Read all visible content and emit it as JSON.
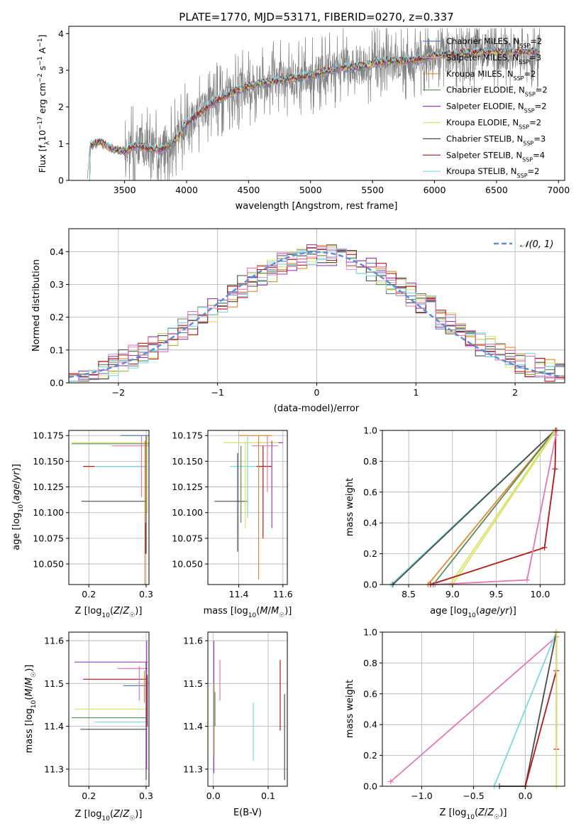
{
  "colors": {
    "chabrier_miles": "#5b7fb5",
    "salpeter_miles": "#d0a6cf",
    "kroupa_miles": "#e08b2e",
    "chabrier_elodie": "#5a8a5a",
    "salpeter_elodie": "#9a3fb7",
    "kroupa_elodie": "#d9e36a",
    "chabrier_stelib": "#4a4a4a",
    "salpeter_stelib": "#b01818",
    "kroupa_stelib": "#7fd8e0",
    "pink": "#e377b2",
    "normal": "#5b8ed6",
    "data": "#808080"
  },
  "chart_data": [
    {
      "id": "spectrum",
      "type": "line",
      "title": "PLATE=1770, MJD=53171, FIBERID=0270, z=0.337",
      "xlabel": "wavelength [Angstrom, rest frame]",
      "ylabel": "Flux [f_λ 10^-17 erg cm^-2 s^-1 A^-1]",
      "xlim": [
        3050,
        7050
      ],
      "ylim": [
        0,
        4.2
      ],
      "xticks": [
        "3500",
        "4000",
        "4500",
        "5000",
        "5500",
        "6000",
        "6500",
        "7000"
      ],
      "yticks": [
        "0",
        "1",
        "2",
        "3",
        "4"
      ],
      "grid": false,
      "legend_position": "top-right",
      "series": [
        {
          "name": "Chabrier MILES, N_SSP=2",
          "color": "chabrier_miles"
        },
        {
          "name": "Salpeter MILES, N_SSP=3",
          "color": "salpeter_miles"
        },
        {
          "name": "Kroupa MILES, N_SSP=2",
          "color": "kroupa_miles"
        },
        {
          "name": "Chabrier ELODIE, N_SSP=2",
          "color": "chabrier_elodie"
        },
        {
          "name": "Salpeter ELODIE, N_SSP=2",
          "color": "salpeter_elodie"
        },
        {
          "name": "Kroupa ELODIE, N_SSP=2",
          "color": "kroupa_elodie"
        },
        {
          "name": "Chabrier STELIB, N_SSP=3",
          "color": "chabrier_stelib"
        },
        {
          "name": "Salpeter STELIB, N_SSP=4",
          "color": "salpeter_stelib"
        },
        {
          "name": "Kroupa STELIB, N_SSP=2",
          "color": "kroupa_stelib"
        }
      ],
      "continuum": [
        [
          3200,
          0
        ],
        [
          3220,
          0.95
        ],
        [
          3300,
          1.05
        ],
        [
          3400,
          0.85
        ],
        [
          3500,
          0.8
        ],
        [
          3600,
          0.95
        ],
        [
          3700,
          0.85
        ],
        [
          3800,
          0.85
        ],
        [
          3900,
          1.05
        ],
        [
          4000,
          1.55
        ],
        [
          4200,
          2.1
        ],
        [
          4400,
          2.45
        ],
        [
          4600,
          2.65
        ],
        [
          4800,
          2.75
        ],
        [
          5000,
          2.85
        ],
        [
          5200,
          3.05
        ],
        [
          5400,
          3.1
        ],
        [
          5600,
          3.25
        ],
        [
          5800,
          3.25
        ],
        [
          6000,
          3.4
        ],
        [
          6200,
          3.45
        ],
        [
          6400,
          3.5
        ],
        [
          6600,
          3.5
        ],
        [
          6800,
          3.5
        ],
        [
          6850,
          3.5
        ]
      ]
    },
    {
      "id": "residuals",
      "type": "line",
      "xlabel": "(data-model)/error",
      "ylabel": "Normed distribution",
      "xlim": [
        -2.5,
        2.5
      ],
      "ylim": [
        0,
        0.47
      ],
      "xticks": [
        "−2",
        "−1",
        "0",
        "1",
        "2"
      ],
      "yticks": [
        "0.0",
        "0.1",
        "0.2",
        "0.3",
        "0.4"
      ],
      "grid": true,
      "legend": "N(0,1)",
      "legend_position": "top-right"
    },
    {
      "id": "age_vs_Z",
      "type": "scatter",
      "xlabel": "Z [log10(Z/Z☉)]",
      "ylabel": "age [log10(age/yr)]",
      "xlim": [
        0.165,
        0.305
      ],
      "ylim": [
        10.03,
        10.18
      ],
      "xticks": [
        "0.2",
        "0.3"
      ],
      "yticks": [
        "10.050",
        "10.075",
        "10.100",
        "10.125",
        "10.150",
        "10.175"
      ],
      "grid": true
    },
    {
      "id": "age_vs_mass",
      "type": "scatter",
      "xlabel": "mass [log10(M/M☉)]",
      "xlim": [
        11.26,
        11.62
      ],
      "ylim": [
        10.03,
        10.18
      ],
      "xticks": [
        "11.4",
        "11.6"
      ],
      "yticks": [
        "10.175",
        "10.150",
        "10.125",
        "10.100",
        "10.075",
        "10.050"
      ],
      "grid": true
    },
    {
      "id": "massweight_vs_age",
      "type": "line",
      "xlabel": "age [log10(age/yr)]",
      "ylabel": "mass weight",
      "xlim": [
        8.2,
        10.28
      ],
      "ylim": [
        0,
        1
      ],
      "xticks": [
        "8.5",
        "9.0",
        "9.5",
        "10.0"
      ],
      "yticks": [
        "0.0",
        "0.2",
        "0.4",
        "0.6",
        "0.8",
        "1.0"
      ],
      "grid": true,
      "series": [
        {
          "color": "kroupa_stelib",
          "x": [
            8.3,
            10.17
          ],
          "y": [
            0,
            1
          ]
        },
        {
          "color": "chabrier_stelib",
          "x": [
            8.32,
            10.17
          ],
          "y": [
            0,
            1
          ]
        },
        {
          "color": "kroupa_miles",
          "x": [
            8.72,
            10.17
          ],
          "y": [
            0,
            1
          ]
        },
        {
          "color": "chabrier_elodie",
          "x": [
            8.78,
            10.17
          ],
          "y": [
            0,
            1
          ]
        },
        {
          "color": "kroupa_elodie",
          "x": [
            8.97,
            10.17
          ],
          "y": [
            0,
            1
          ]
        },
        {
          "color": "kroupa_elodie",
          "x": [
            9.0,
            10.18
          ],
          "y": [
            0,
            1
          ]
        },
        {
          "color": "salpeter_stelib",
          "x": [
            8.75,
            10.05,
            10.17,
            10.18
          ],
          "y": [
            0,
            0.24,
            0.75,
            1
          ]
        },
        {
          "color": "pink",
          "x": [
            8.8,
            9.85,
            10.18,
            10.19
          ],
          "y": [
            0,
            0.03,
            0.97,
            1
          ]
        }
      ]
    },
    {
      "id": "mass_vs_Z",
      "type": "scatter",
      "xlabel": "Z [log10(Z/Z☉)]",
      "ylabel": "mass [log10(M/M☉)]",
      "xlim": [
        0.165,
        0.305
      ],
      "ylim": [
        11.26,
        11.62
      ],
      "xticks": [
        "0.2",
        "0.3"
      ],
      "yticks": [
        "11.3",
        "11.4",
        "11.5",
        "11.6"
      ],
      "grid": true
    },
    {
      "id": "mass_vs_ebv",
      "type": "scatter",
      "xlabel": "E(B-V)",
      "xlim": [
        -0.01,
        0.135
      ],
      "ylim": [
        11.26,
        11.62
      ],
      "xticks": [
        "0.0",
        "0.1"
      ],
      "yticks": [
        "11.3",
        "11.4",
        "11.5",
        "11.6"
      ],
      "grid": true
    },
    {
      "id": "massweight_vs_Z",
      "type": "line",
      "xlabel": "Z [log10(Z/Z☉)]",
      "ylabel": "mass weight",
      "xlim": [
        -1.38,
        0.38
      ],
      "ylim": [
        0,
        1
      ],
      "xticks": [
        "−1.0",
        "−0.5",
        "0.0"
      ],
      "yticks": [
        "0.0",
        "0.2",
        "0.4",
        "0.6",
        "0.8",
        "1.0"
      ],
      "grid": true,
      "series": [
        {
          "color": "pink",
          "x": [
            -1.3,
            0.3
          ],
          "y": [
            0.03,
            0.97
          ]
        },
        {
          "color": "kroupa_stelib",
          "x": [
            -0.3,
            0.3
          ],
          "y": [
            0,
            1
          ]
        },
        {
          "color": "chabrier_stelib",
          "x": [
            -0.25,
            0.0,
            0.3
          ],
          "y": [
            0,
            0,
            1
          ]
        },
        {
          "color": "salpeter_stelib",
          "x": [
            0.0,
            0.3,
            0.3,
            0.3
          ],
          "y": [
            0.0,
            0.75,
            0.24,
            1
          ]
        },
        {
          "color": "kroupa_elodie",
          "x": [
            0.3,
            0.3
          ],
          "y": [
            0,
            1
          ]
        }
      ]
    }
  ]
}
